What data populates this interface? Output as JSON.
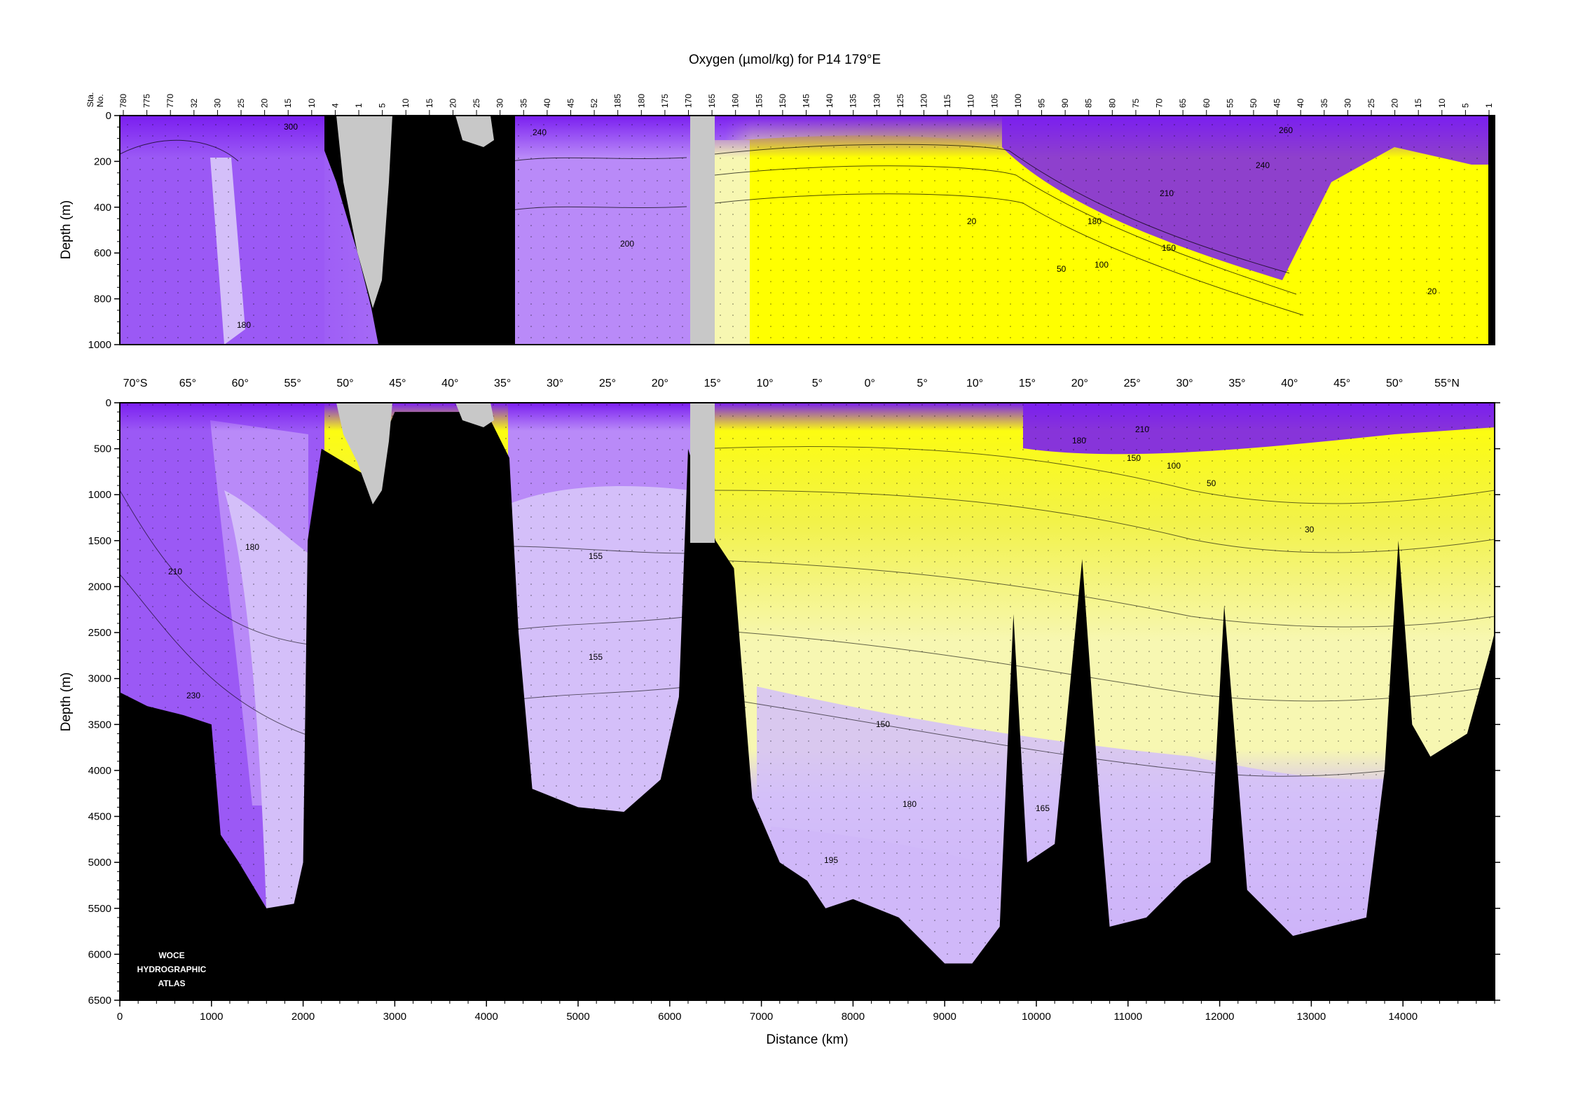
{
  "title": "Oxygen (µmol/kg) for P14 179°E",
  "logo": [
    "WOCE",
    "HYDROGRAPHIC",
    "ATLAS"
  ],
  "colors": {
    "purple_dark": "#7a1ef0",
    "purple_mid": "#9b59f5",
    "purple_light": "#b98af8",
    "lavender": "#d4bff9",
    "yellow_pale": "#f7f7b2",
    "yellow": "#f2f24a",
    "yellow_bright": "#ffff00",
    "bathymetry": "#000000",
    "land": "#c8c8c8"
  },
  "chart_data": [
    {
      "type": "heatmap",
      "panel": "upper",
      "variable": "Oxygen (µmol/kg)",
      "ylabel": "Depth (m)",
      "xlabel": "",
      "xlim": [
        0,
        15000
      ],
      "ylim": [
        1000,
        0
      ],
      "yticks": [
        0,
        200,
        400,
        600,
        800,
        1000
      ],
      "station_axis_label": [
        "Sta.",
        "No."
      ],
      "station_labels": [
        "780",
        "775",
        "770",
        "32",
        "30",
        "25",
        "20",
        "15",
        "10",
        "4",
        "1",
        "5",
        "10",
        "15",
        "20",
        "25",
        "30",
        "35",
        "40",
        "45",
        "52",
        "185",
        "180",
        "175",
        "170",
        "165",
        "160",
        "155",
        "150",
        "145",
        "140",
        "135",
        "130",
        "125",
        "120",
        "115",
        "110",
        "105",
        "100",
        "95",
        "90",
        "85",
        "80",
        "75",
        "70",
        "65",
        "60",
        "55",
        "50",
        "45",
        "40",
        "35",
        "30",
        "25",
        "20",
        "15",
        "10",
        "5",
        "1"
      ],
      "contour_labels": [
        "300",
        "240",
        "200",
        "180",
        "210",
        "180",
        "150",
        "100",
        "50",
        "20",
        "20",
        "240",
        "260"
      ]
    },
    {
      "type": "heatmap",
      "panel": "lower",
      "variable": "Oxygen (µmol/kg)",
      "xlabel": "Distance (km)",
      "ylabel": "Depth (m)",
      "xlim": [
        0,
        15000
      ],
      "ylim": [
        6500,
        0
      ],
      "xticks": [
        0,
        1000,
        2000,
        3000,
        4000,
        5000,
        6000,
        7000,
        8000,
        9000,
        10000,
        11000,
        12000,
        13000,
        14000
      ],
      "yticks": [
        0,
        500,
        1000,
        1500,
        2000,
        2500,
        3000,
        3500,
        4000,
        4500,
        5000,
        5500,
        6000,
        6500
      ],
      "latitude_labels": [
        "70°S",
        "65°",
        "60°",
        "55°",
        "50°",
        "45°",
        "40°",
        "35°",
        "30°",
        "25°",
        "20°",
        "15°",
        "10°",
        "5°",
        "0°",
        "5°",
        "10°",
        "15°",
        "20°",
        "25°",
        "30°",
        "35°",
        "40°",
        "45°",
        "50°",
        "55°N"
      ],
      "contour_labels": [
        "180",
        "210",
        "230",
        "155",
        "155",
        "150",
        "180",
        "165",
        "195",
        "180",
        "150",
        "100",
        "50",
        "30",
        "210"
      ],
      "bottom_depth": [
        {
          "x": 0,
          "depth": 3150
        },
        {
          "x": 300,
          "depth": 3300
        },
        {
          "x": 700,
          "depth": 3400
        },
        {
          "x": 1000,
          "depth": 3500
        },
        {
          "x": 1100,
          "depth": 4700
        },
        {
          "x": 1300,
          "depth": 5000
        },
        {
          "x": 1600,
          "depth": 5500
        },
        {
          "x": 1900,
          "depth": 5450
        },
        {
          "x": 2000,
          "depth": 5000
        },
        {
          "x": 2050,
          "depth": 1500
        },
        {
          "x": 2200,
          "depth": 500
        },
        {
          "x": 2700,
          "depth": 800
        },
        {
          "x": 3000,
          "depth": 100
        },
        {
          "x": 4000,
          "depth": 100
        },
        {
          "x": 4250,
          "depth": 600
        },
        {
          "x": 4350,
          "depth": 2500
        },
        {
          "x": 4500,
          "depth": 4200
        },
        {
          "x": 5000,
          "depth": 4400
        },
        {
          "x": 5500,
          "depth": 4450
        },
        {
          "x": 5900,
          "depth": 4100
        },
        {
          "x": 6100,
          "depth": 3200
        },
        {
          "x": 6200,
          "depth": 500
        },
        {
          "x": 6500,
          "depth": 1500
        },
        {
          "x": 6700,
          "depth": 1800
        },
        {
          "x": 6900,
          "depth": 4300
        },
        {
          "x": 7200,
          "depth": 5000
        },
        {
          "x": 7500,
          "depth": 5200
        },
        {
          "x": 7700,
          "depth": 5500
        },
        {
          "x": 8000,
          "depth": 5400
        },
        {
          "x": 8500,
          "depth": 5600
        },
        {
          "x": 9000,
          "depth": 6100
        },
        {
          "x": 9300,
          "depth": 6100
        },
        {
          "x": 9600,
          "depth": 5700
        },
        {
          "x": 9750,
          "depth": 2300
        },
        {
          "x": 9900,
          "depth": 5000
        },
        {
          "x": 10200,
          "depth": 4800
        },
        {
          "x": 10500,
          "depth": 1700
        },
        {
          "x": 10700,
          "depth": 4500
        },
        {
          "x": 10800,
          "depth": 5700
        },
        {
          "x": 11200,
          "depth": 5600
        },
        {
          "x": 11600,
          "depth": 5200
        },
        {
          "x": 11900,
          "depth": 5000
        },
        {
          "x": 12050,
          "depth": 2200
        },
        {
          "x": 12300,
          "depth": 5300
        },
        {
          "x": 12800,
          "depth": 5800
        },
        {
          "x": 13200,
          "depth": 5700
        },
        {
          "x": 13600,
          "depth": 5600
        },
        {
          "x": 13800,
          "depth": 4000
        },
        {
          "x": 13950,
          "depth": 1500
        },
        {
          "x": 14100,
          "depth": 3500
        },
        {
          "x": 14300,
          "depth": 3850
        },
        {
          "x": 14700,
          "depth": 3600
        },
        {
          "x": 14950,
          "depth": 2700
        },
        {
          "x": 15000,
          "depth": 2500
        }
      ]
    }
  ]
}
